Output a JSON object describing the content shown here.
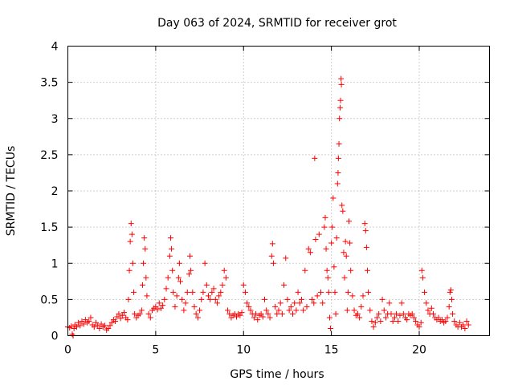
{
  "chart_data": {
    "type": "scatter",
    "title": "Day 063 of 2024, SRMTID for receiver grot",
    "xlabel": "GPS time / hours",
    "ylabel": "SRMTID / TECUs",
    "xlim": [
      0,
      24
    ],
    "ylim": [
      0,
      4
    ],
    "xticks": [
      0,
      5,
      10,
      15,
      20
    ],
    "yticks": [
      0,
      0.5,
      1,
      1.5,
      2,
      2.5,
      3,
      3.5,
      4
    ],
    "grid": true,
    "marker": "plus",
    "color": "#ff0000",
    "series": [
      {
        "name": "SRMTID",
        "points": [
          [
            0.0,
            0.12
          ],
          [
            0.1,
            0.11
          ],
          [
            0.2,
            0.13
          ],
          [
            0.25,
            0.02
          ],
          [
            0.3,
            0.0
          ],
          [
            0.35,
            0.1
          ],
          [
            0.4,
            0.15
          ],
          [
            0.5,
            0.12
          ],
          [
            0.6,
            0.18
          ],
          [
            0.7,
            0.14
          ],
          [
            0.8,
            0.2
          ],
          [
            0.9,
            0.16
          ],
          [
            1.0,
            0.22
          ],
          [
            1.1,
            0.18
          ],
          [
            1.2,
            0.2
          ],
          [
            1.3,
            0.25
          ],
          [
            1.4,
            0.15
          ],
          [
            1.5,
            0.12
          ],
          [
            1.6,
            0.18
          ],
          [
            1.7,
            0.14
          ],
          [
            1.8,
            0.1
          ],
          [
            1.9,
            0.16
          ],
          [
            2.0,
            0.12
          ],
          [
            2.1,
            0.14
          ],
          [
            2.2,
            0.08
          ],
          [
            2.3,
            0.1
          ],
          [
            2.4,
            0.14
          ],
          [
            2.5,
            0.18
          ],
          [
            2.6,
            0.22
          ],
          [
            2.7,
            0.2
          ],
          [
            2.8,
            0.26
          ],
          [
            2.9,
            0.3
          ],
          [
            3.0,
            0.24
          ],
          [
            3.1,
            0.28
          ],
          [
            3.2,
            0.32
          ],
          [
            3.3,
            0.25
          ],
          [
            3.4,
            0.22
          ],
          [
            3.45,
            0.5
          ],
          [
            3.5,
            0.9
          ],
          [
            3.55,
            1.3
          ],
          [
            3.6,
            1.55
          ],
          [
            3.65,
            1.4
          ],
          [
            3.7,
            1.0
          ],
          [
            3.75,
            0.6
          ],
          [
            3.8,
            0.3
          ],
          [
            3.9,
            0.25
          ],
          [
            4.0,
            0.28
          ],
          [
            4.1,
            0.3
          ],
          [
            4.2,
            0.35
          ],
          [
            4.25,
            0.7
          ],
          [
            4.3,
            1.0
          ],
          [
            4.35,
            1.35
          ],
          [
            4.4,
            1.2
          ],
          [
            4.45,
            0.8
          ],
          [
            4.5,
            0.55
          ],
          [
            4.6,
            0.3
          ],
          [
            4.7,
            0.25
          ],
          [
            4.8,
            0.35
          ],
          [
            4.9,
            0.38
          ],
          [
            5.0,
            0.4
          ],
          [
            5.1,
            0.36
          ],
          [
            5.2,
            0.45
          ],
          [
            5.3,
            0.38
          ],
          [
            5.4,
            0.42
          ],
          [
            5.5,
            0.5
          ],
          [
            5.6,
            0.65
          ],
          [
            5.7,
            0.8
          ],
          [
            5.8,
            1.1
          ],
          [
            5.85,
            1.35
          ],
          [
            5.9,
            1.2
          ],
          [
            5.95,
            0.9
          ],
          [
            6.0,
            0.6
          ],
          [
            6.1,
            0.4
          ],
          [
            6.2,
            0.55
          ],
          [
            6.3,
            0.8
          ],
          [
            6.35,
            1.0
          ],
          [
            6.4,
            0.75
          ],
          [
            6.5,
            0.5
          ],
          [
            6.6,
            0.35
          ],
          [
            6.7,
            0.45
          ],
          [
            6.8,
            0.6
          ],
          [
            6.9,
            0.85
          ],
          [
            6.95,
            1.1
          ],
          [
            7.0,
            0.9
          ],
          [
            7.1,
            0.6
          ],
          [
            7.2,
            0.4
          ],
          [
            7.3,
            0.3
          ],
          [
            7.4,
            0.25
          ],
          [
            7.5,
            0.35
          ],
          [
            7.6,
            0.5
          ],
          [
            7.7,
            0.6
          ],
          [
            7.8,
            1.0
          ],
          [
            7.9,
            0.7
          ],
          [
            8.0,
            0.55
          ],
          [
            8.1,
            0.5
          ],
          [
            8.2,
            0.6
          ],
          [
            8.3,
            0.65
          ],
          [
            8.4,
            0.5
          ],
          [
            8.5,
            0.45
          ],
          [
            8.6,
            0.55
          ],
          [
            8.7,
            0.6
          ],
          [
            8.8,
            0.7
          ],
          [
            8.9,
            0.9
          ],
          [
            9.0,
            0.8
          ],
          [
            9.1,
            0.35
          ],
          [
            9.2,
            0.3
          ],
          [
            9.3,
            0.25
          ],
          [
            9.4,
            0.28
          ],
          [
            9.5,
            0.3
          ],
          [
            9.6,
            0.26
          ],
          [
            9.7,
            0.3
          ],
          [
            9.8,
            0.28
          ],
          [
            9.9,
            0.32
          ],
          [
            10.0,
            0.7
          ],
          [
            10.1,
            0.6
          ],
          [
            10.2,
            0.45
          ],
          [
            10.3,
            0.4
          ],
          [
            10.4,
            0.35
          ],
          [
            10.5,
            0.3
          ],
          [
            10.6,
            0.25
          ],
          [
            10.7,
            0.3
          ],
          [
            10.8,
            0.22
          ],
          [
            10.9,
            0.28
          ],
          [
            11.0,
            0.3
          ],
          [
            11.1,
            0.26
          ],
          [
            11.2,
            0.5
          ],
          [
            11.3,
            0.35
          ],
          [
            11.4,
            0.3
          ],
          [
            11.5,
            0.25
          ],
          [
            11.6,
            1.1
          ],
          [
            11.65,
            1.27
          ],
          [
            11.7,
            1.0
          ],
          [
            11.8,
            0.4
          ],
          [
            11.9,
            0.3
          ],
          [
            12.0,
            0.35
          ],
          [
            12.1,
            0.45
          ],
          [
            12.2,
            0.3
          ],
          [
            12.3,
            0.7
          ],
          [
            12.4,
            1.07
          ],
          [
            12.5,
            0.5
          ],
          [
            12.6,
            0.35
          ],
          [
            12.7,
            0.4
          ],
          [
            12.8,
            0.3
          ],
          [
            12.9,
            0.45
          ],
          [
            13.0,
            0.35
          ],
          [
            13.1,
            0.6
          ],
          [
            13.2,
            0.45
          ],
          [
            13.3,
            0.5
          ],
          [
            13.4,
            0.35
          ],
          [
            13.5,
            0.9
          ],
          [
            13.6,
            0.4
          ],
          [
            13.7,
            1.2
          ],
          [
            13.8,
            1.15
          ],
          [
            13.9,
            0.5
          ],
          [
            14.0,
            0.45
          ],
          [
            14.05,
            2.45
          ],
          [
            14.1,
            1.33
          ],
          [
            14.2,
            0.55
          ],
          [
            14.3,
            1.4
          ],
          [
            14.4,
            0.6
          ],
          [
            14.5,
            0.45
          ],
          [
            14.6,
            1.5
          ],
          [
            14.65,
            1.63
          ],
          [
            14.7,
            1.2
          ],
          [
            14.75,
            0.9
          ],
          [
            14.8,
            0.8
          ],
          [
            14.85,
            0.6
          ],
          [
            14.9,
            0.25
          ],
          [
            14.95,
            0.1
          ],
          [
            15.0,
            1.28
          ],
          [
            15.05,
            1.5
          ],
          [
            15.1,
            1.9
          ],
          [
            15.15,
            0.95
          ],
          [
            15.2,
            0.6
          ],
          [
            15.25,
            0.3
          ],
          [
            15.3,
            1.35
          ],
          [
            15.35,
            2.1
          ],
          [
            15.38,
            2.25
          ],
          [
            15.4,
            2.45
          ],
          [
            15.43,
            2.65
          ],
          [
            15.46,
            3.0
          ],
          [
            15.5,
            3.15
          ],
          [
            15.52,
            3.25
          ],
          [
            15.55,
            3.55
          ],
          [
            15.57,
            3.47
          ],
          [
            15.6,
            1.8
          ],
          [
            15.65,
            1.72
          ],
          [
            15.7,
            1.15
          ],
          [
            15.75,
            0.8
          ],
          [
            15.8,
            1.3
          ],
          [
            15.85,
            1.1
          ],
          [
            15.9,
            0.35
          ],
          [
            15.95,
            0.6
          ],
          [
            16.0,
            1.58
          ],
          [
            16.05,
            1.28
          ],
          [
            16.1,
            0.9
          ],
          [
            16.2,
            0.55
          ],
          [
            16.3,
            0.35
          ],
          [
            16.4,
            0.28
          ],
          [
            16.5,
            0.3
          ],
          [
            16.6,
            0.25
          ],
          [
            16.7,
            0.4
          ],
          [
            16.8,
            0.55
          ],
          [
            16.9,
            1.55
          ],
          [
            16.95,
            1.45
          ],
          [
            17.0,
            1.22
          ],
          [
            17.05,
            0.9
          ],
          [
            17.1,
            0.6
          ],
          [
            17.2,
            0.35
          ],
          [
            17.3,
            0.2
          ],
          [
            17.4,
            0.12
          ],
          [
            17.5,
            0.18
          ],
          [
            17.6,
            0.25
          ],
          [
            17.7,
            0.3
          ],
          [
            17.8,
            0.2
          ],
          [
            17.9,
            0.5
          ],
          [
            18.0,
            0.35
          ],
          [
            18.1,
            0.25
          ],
          [
            18.2,
            0.3
          ],
          [
            18.3,
            0.45
          ],
          [
            18.4,
            0.3
          ],
          [
            18.5,
            0.2
          ],
          [
            18.6,
            0.25
          ],
          [
            18.7,
            0.3
          ],
          [
            18.8,
            0.2
          ],
          [
            18.9,
            0.28
          ],
          [
            19.0,
            0.45
          ],
          [
            19.1,
            0.3
          ],
          [
            19.2,
            0.25
          ],
          [
            19.3,
            0.22
          ],
          [
            19.4,
            0.3
          ],
          [
            19.5,
            0.28
          ],
          [
            19.6,
            0.3
          ],
          [
            19.7,
            0.25
          ],
          [
            19.8,
            0.2
          ],
          [
            19.9,
            0.15
          ],
          [
            20.0,
            0.12
          ],
          [
            20.1,
            0.18
          ],
          [
            20.15,
            0.9
          ],
          [
            20.2,
            0.8
          ],
          [
            20.3,
            0.6
          ],
          [
            20.4,
            0.45
          ],
          [
            20.5,
            0.35
          ],
          [
            20.6,
            0.3
          ],
          [
            20.7,
            0.38
          ],
          [
            20.8,
            0.3
          ],
          [
            20.9,
            0.25
          ],
          [
            21.0,
            0.22
          ],
          [
            21.1,
            0.25
          ],
          [
            21.2,
            0.2
          ],
          [
            21.3,
            0.22
          ],
          [
            21.4,
            0.18
          ],
          [
            21.5,
            0.2
          ],
          [
            21.6,
            0.25
          ],
          [
            21.7,
            0.4
          ],
          [
            21.75,
            0.6
          ],
          [
            21.8,
            0.63
          ],
          [
            21.85,
            0.5
          ],
          [
            21.9,
            0.3
          ],
          [
            22.0,
            0.2
          ],
          [
            22.1,
            0.15
          ],
          [
            22.2,
            0.12
          ],
          [
            22.3,
            0.18
          ],
          [
            22.4,
            0.12
          ],
          [
            22.5,
            0.15
          ],
          [
            22.6,
            0.1
          ],
          [
            22.7,
            0.2
          ],
          [
            22.8,
            0.15
          ]
        ]
      }
    ]
  }
}
